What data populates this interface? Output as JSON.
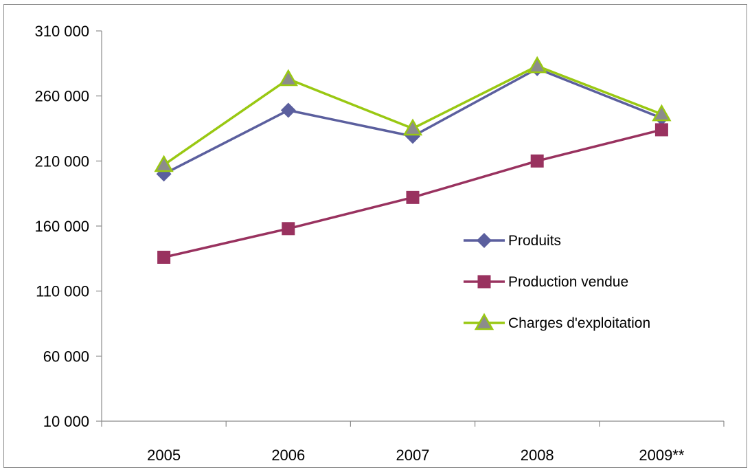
{
  "chart_data": {
    "type": "line",
    "categories": [
      "2005",
      "2006",
      "2007",
      "2008",
      "2009**"
    ],
    "y_ticks": [
      "10 000",
      "60 000",
      "110 000",
      "160 000",
      "210 000",
      "260 000",
      "310 000"
    ],
    "ylim": [
      10000,
      310000
    ],
    "grid": false,
    "legend_position": "right",
    "series": [
      {
        "name": "Produits",
        "values": [
          200000,
          249000,
          229000,
          281000,
          243000
        ],
        "color": "#5b5f9e",
        "marker": "diamond"
      },
      {
        "name": "Production vendue",
        "values": [
          136000,
          158000,
          182000,
          210000,
          234000
        ],
        "color": "#99325f",
        "marker": "square"
      },
      {
        "name": "Charges d'exploitation",
        "values": [
          207000,
          273000,
          235000,
          283000,
          246000
        ],
        "color": "#99c812",
        "marker": "triangle"
      }
    ]
  }
}
